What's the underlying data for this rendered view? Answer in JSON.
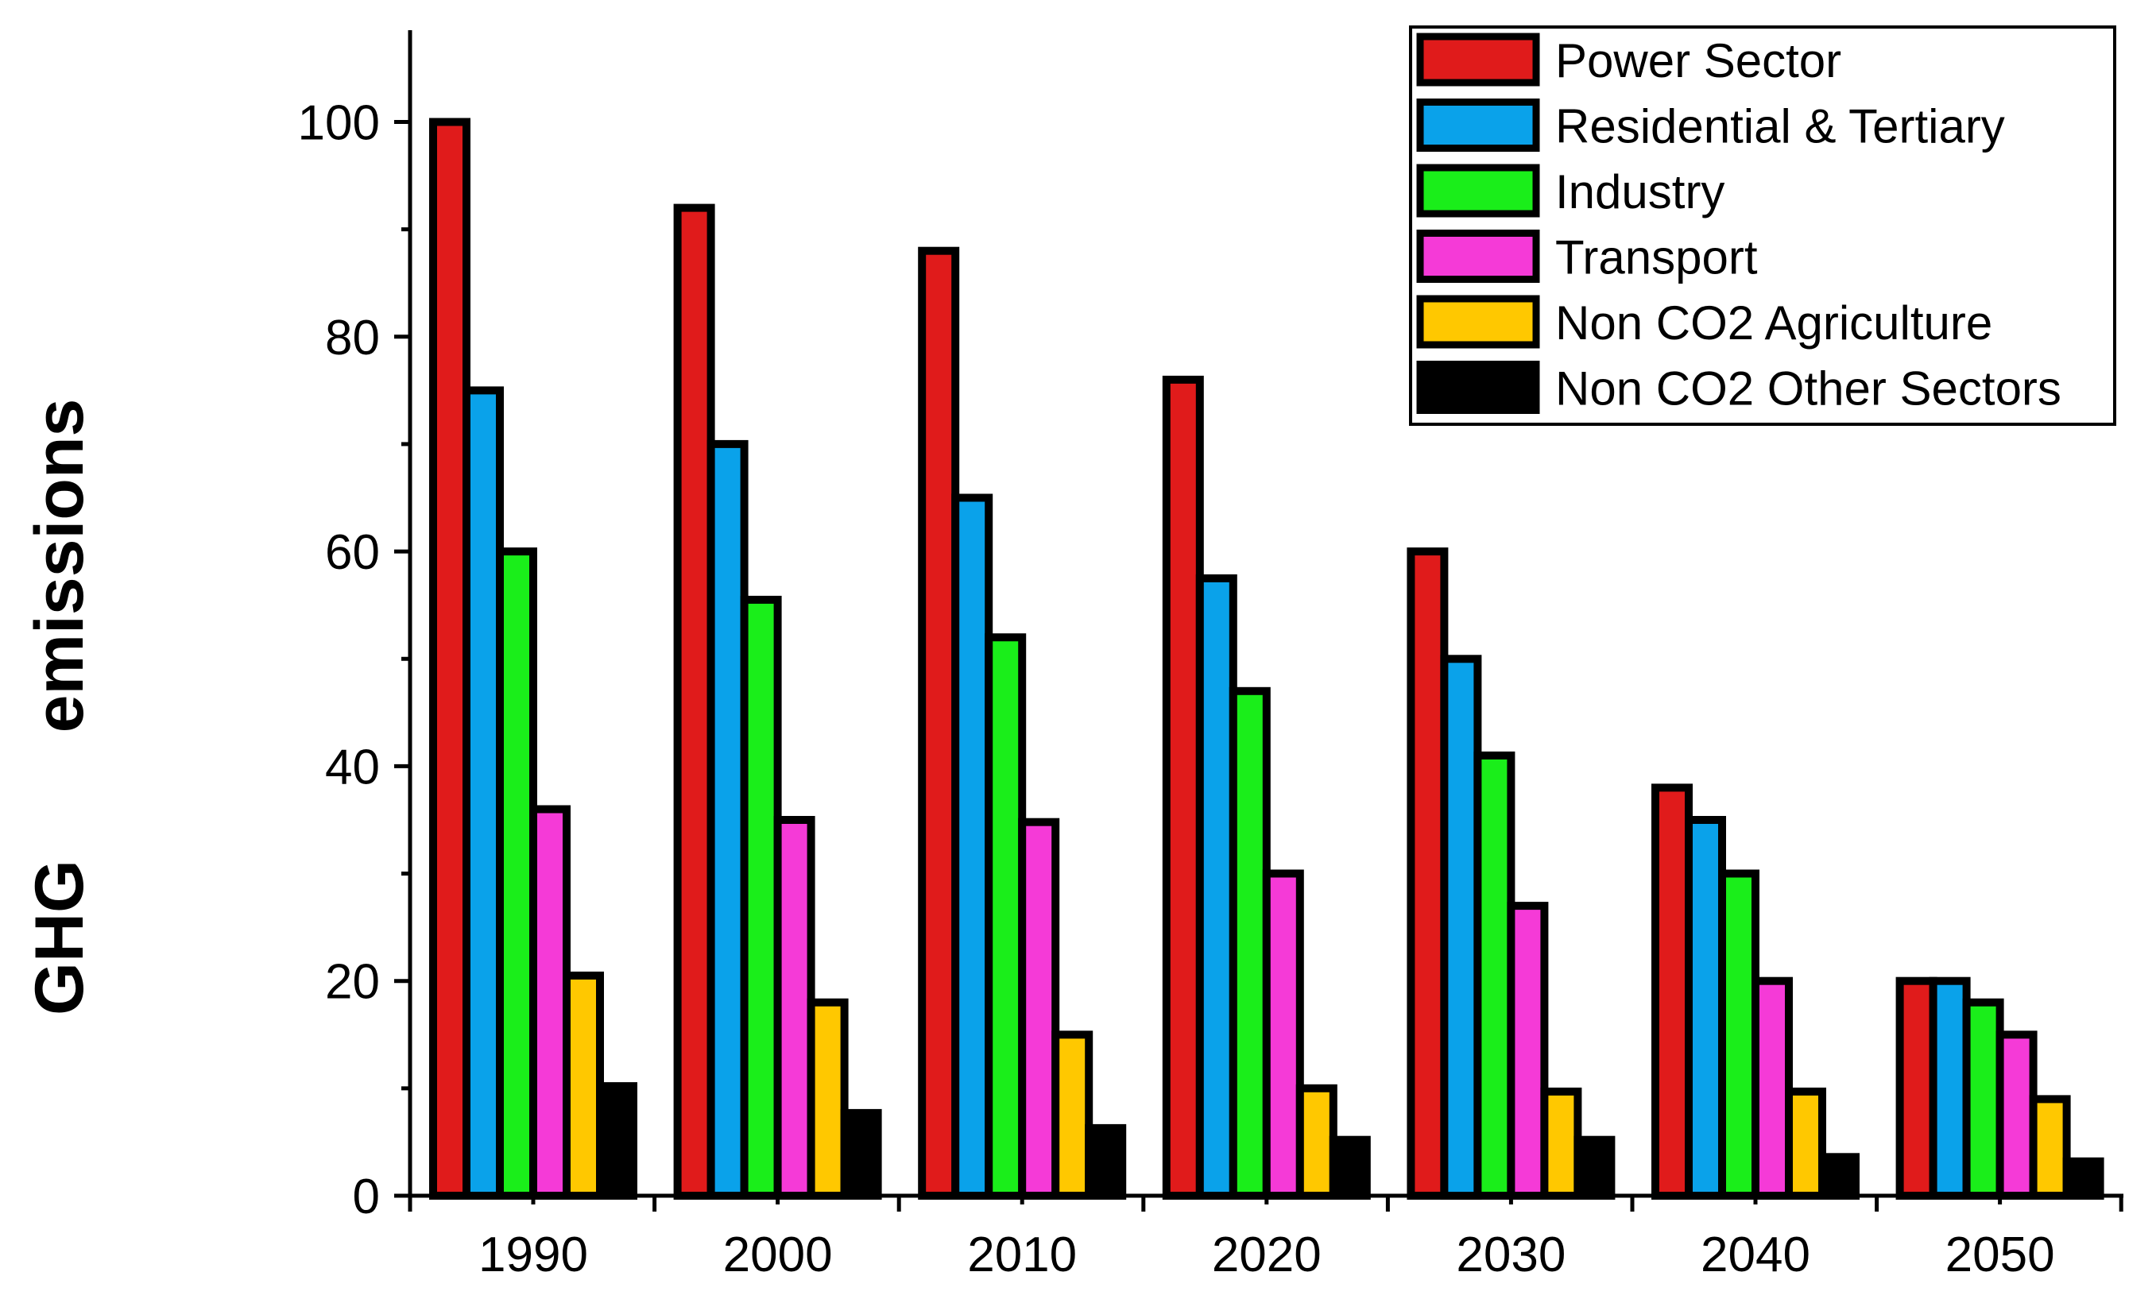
{
  "chart_data": {
    "type": "bar",
    "title": "",
    "xlabel": "",
    "ylabel_parts": [
      "GHG",
      "emissions"
    ],
    "ylim": [
      0,
      108
    ],
    "yticks": [
      0,
      20,
      40,
      60,
      80,
      100
    ],
    "grid": false,
    "legend_position": "top-right",
    "categories": [
      "1990",
      "2000",
      "2010",
      "2020",
      "2030",
      "2040",
      "2050"
    ],
    "series": [
      {
        "name": "Power Sector",
        "color": "#e01b1b",
        "values": [
          100,
          92,
          88,
          76,
          60,
          38,
          20
        ]
      },
      {
        "name": "Residential & Tertiary",
        "color": "#0aa2ea",
        "values": [
          75,
          70,
          65,
          57.5,
          50,
          35,
          20
        ]
      },
      {
        "name": "Industry",
        "color": "#1aee1a",
        "values": [
          60,
          55.5,
          52,
          47,
          41,
          30,
          18
        ]
      },
      {
        "name": "Transport",
        "color": "#f53ad7",
        "values": [
          36,
          35,
          34.8,
          30,
          27,
          20,
          15
        ]
      },
      {
        "name": "Non CO2 Agriculture",
        "color": "#ffc800",
        "values": [
          20.5,
          18,
          15,
          10,
          9.7,
          9.7,
          9
        ]
      },
      {
        "name": "Non CO2 Other Sectors",
        "color": "#000000",
        "values": [
          10.2,
          7.7,
          6.3,
          5.2,
          5.2,
          3.6,
          3.2
        ]
      }
    ]
  }
}
